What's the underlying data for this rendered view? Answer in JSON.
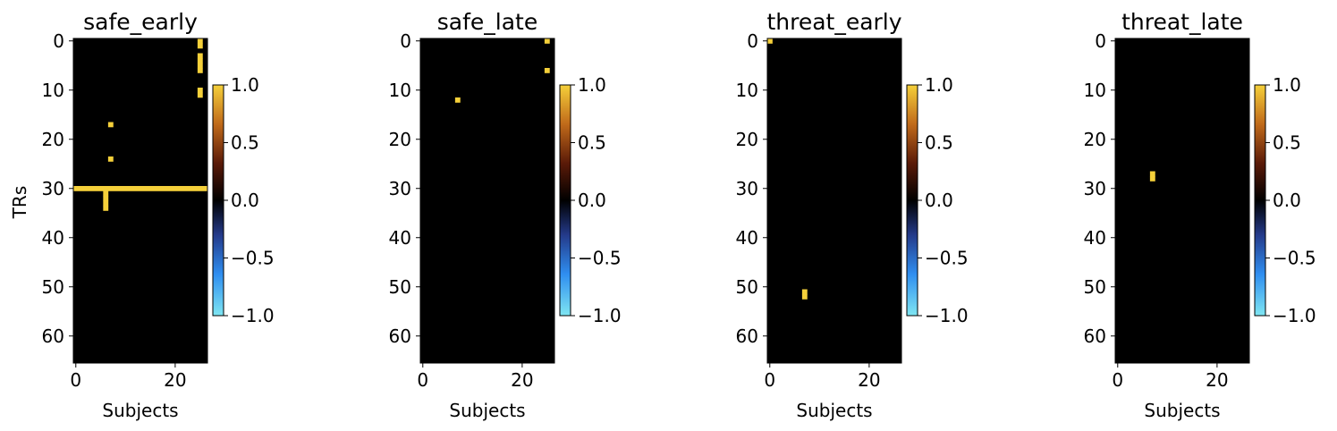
{
  "figure": {
    "ylabel": "TRs",
    "xlabel": "Subjects"
  },
  "chart_data": [
    {
      "type": "heatmap",
      "title": "safe_early",
      "xlabel": "Subjects",
      "ylabel": "TRs",
      "n_cols": 27,
      "n_rows": 66,
      "x_ticks": [
        "0",
        "20"
      ],
      "y_ticks": [
        "0",
        "10",
        "20",
        "30",
        "40",
        "50",
        "60"
      ],
      "colorbar": {
        "ticks": [
          "1.0",
          "0.5",
          "0.0",
          "−0.5",
          "−1.0"
        ],
        "range": [
          -1,
          1
        ]
      },
      "cells": [
        {
          "col": 25,
          "rows": [
            0,
            1
          ]
        },
        {
          "col": 25,
          "rows": [
            3,
            4,
            5,
            6
          ]
        },
        {
          "col": 25,
          "rows": [
            10,
            11
          ]
        },
        {
          "col": 7,
          "rows": [
            17
          ]
        },
        {
          "col": 7,
          "rows": [
            24
          ]
        },
        {
          "col": 6,
          "rows": [
            31,
            32,
            33,
            34
          ]
        },
        {
          "row": 30,
          "cols": [
            0,
            26
          ],
          "value": 1
        }
      ]
    },
    {
      "type": "heatmap",
      "title": "safe_late",
      "xlabel": "Subjects",
      "ylabel": "",
      "n_cols": 27,
      "n_rows": 66,
      "x_ticks": [
        "0",
        "20"
      ],
      "y_ticks": [
        "0",
        "10",
        "20",
        "30",
        "40",
        "50",
        "60"
      ],
      "colorbar": {
        "ticks": [
          "1.0",
          "0.5",
          "0.0",
          "−0.5",
          "−1.0"
        ],
        "range": [
          -1,
          1
        ]
      },
      "cells": [
        {
          "col": 25,
          "rows": [
            0
          ]
        },
        {
          "col": 25,
          "rows": [
            6
          ]
        },
        {
          "col": 7,
          "rows": [
            12
          ]
        }
      ]
    },
    {
      "type": "heatmap",
      "title": "threat_early",
      "xlabel": "Subjects",
      "ylabel": "",
      "n_cols": 27,
      "n_rows": 66,
      "x_ticks": [
        "0",
        "20"
      ],
      "y_ticks": [
        "0",
        "10",
        "20",
        "30",
        "40",
        "50",
        "60"
      ],
      "colorbar": {
        "ticks": [
          "1.0",
          "0.5",
          "0.0",
          "−0.5",
          "−1.0"
        ],
        "range": [
          -1,
          1
        ]
      },
      "cells": [
        {
          "col": 0,
          "rows": [
            0
          ]
        },
        {
          "col": 7,
          "rows": [
            51,
            52
          ]
        }
      ]
    },
    {
      "type": "heatmap",
      "title": "threat_late",
      "xlabel": "Subjects",
      "ylabel": "",
      "n_cols": 27,
      "n_rows": 66,
      "x_ticks": [
        "0",
        "20"
      ],
      "y_ticks": [
        "0",
        "10",
        "20",
        "30",
        "40",
        "50",
        "60"
      ],
      "colorbar": {
        "ticks": [
          "1.0",
          "0.5",
          "0.0",
          "−0.5",
          "−1.0"
        ],
        "range": [
          -1,
          1
        ]
      },
      "cells": [
        {
          "col": 7,
          "rows": [
            27,
            28
          ]
        }
      ]
    }
  ],
  "colors": {
    "background_zero": "#000000",
    "positive": "#f5d03a",
    "colormap_stops": [
      "#7fe6f2",
      "#2f8ef0",
      "#243a8a",
      "#000000",
      "#5a1a08",
      "#c06a1a",
      "#f5d03a"
    ]
  }
}
